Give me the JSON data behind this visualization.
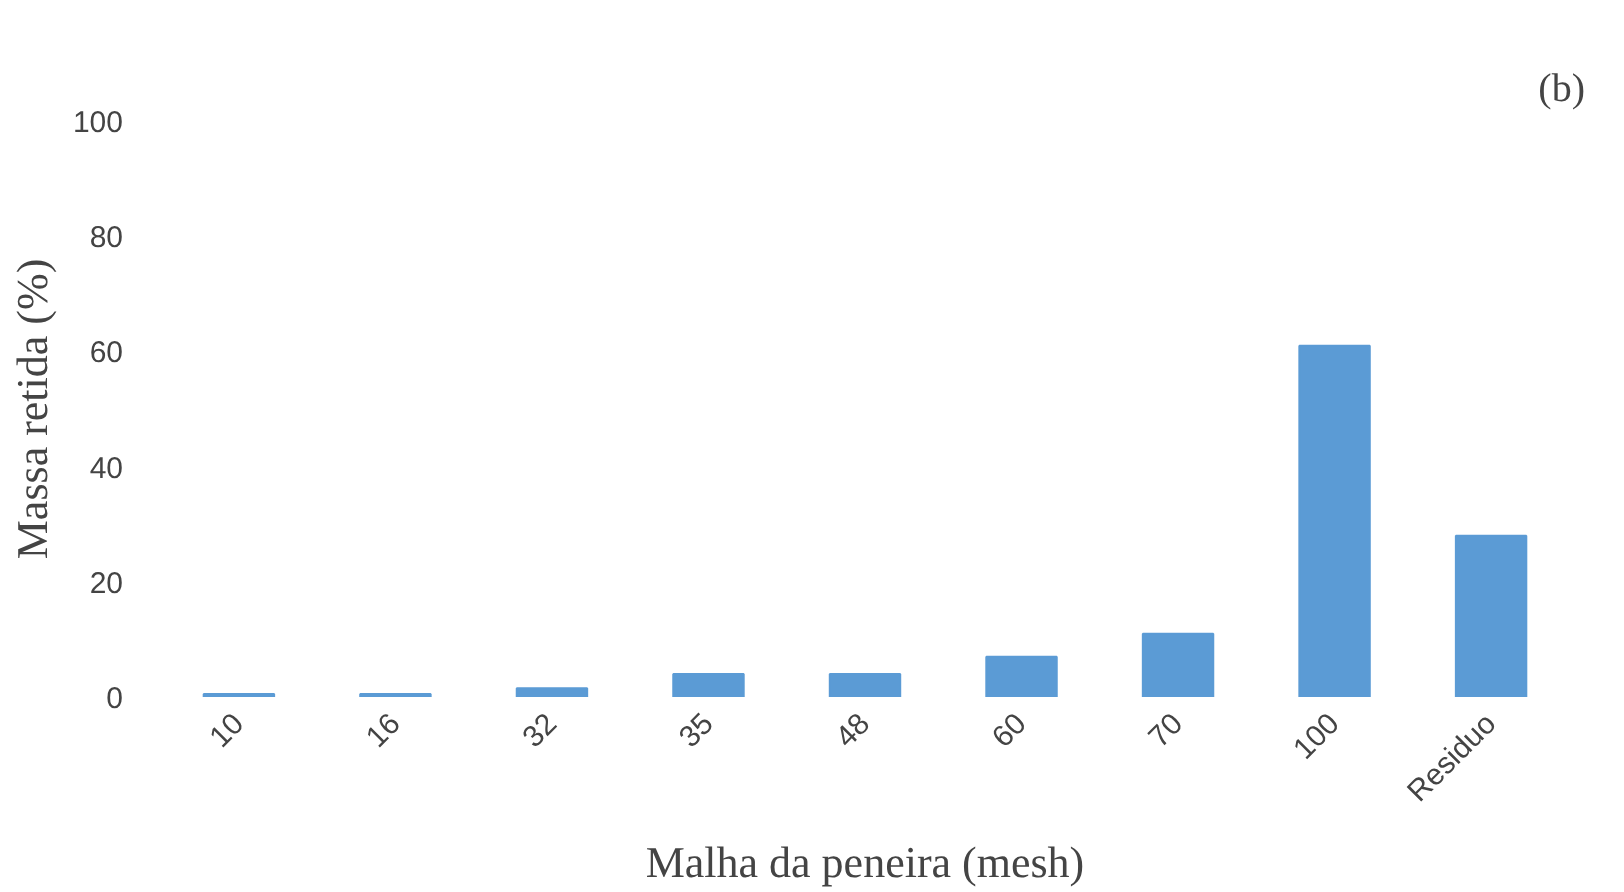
{
  "chart_data": {
    "type": "bar",
    "title": "(b)",
    "xlabel": "Malha da peneira (mesh)",
    "ylabel": "Massa retida (%)",
    "categories": [
      "10",
      "16",
      "32",
      "35",
      "48",
      "60",
      "70",
      "100",
      "Residuo"
    ],
    "values": [
      0.5,
      0.5,
      1.5,
      4,
      4,
      7,
      11,
      61,
      28
    ],
    "color": "#5b9bd5",
    "ylim": [
      0,
      100
    ],
    "yticks": [
      0,
      20,
      40,
      60,
      80,
      100
    ],
    "grid": false
  }
}
